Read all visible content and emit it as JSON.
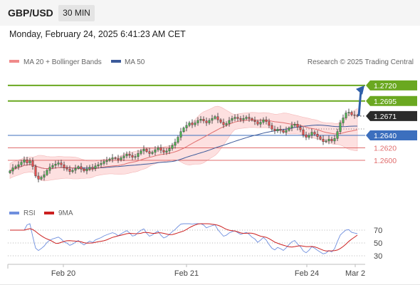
{
  "header": {
    "pair": "GBP/USD",
    "timeframe": "30 MIN"
  },
  "timestamp": "Monday, February 24, 2025 6:41:23 AM CET",
  "colors": {
    "resistance": "#6aa820",
    "support": "#e06c6c",
    "pivot": "#3c6fbe",
    "price_tag": "#2a2a2a",
    "bollinger_fill": "#fde0e0",
    "ma20": "#e07070",
    "ma50": "#3c5a9a",
    "rsi": "#6f8fde",
    "rsi_ma": "#cc2020",
    "candle_up": "#4caf50",
    "candle_down": "#e05050"
  },
  "chart_data": [
    {
      "type": "candlestick",
      "legend": {
        "ma20": "MA 20 + Bollinger Bands",
        "ma50": "MA 50"
      },
      "credit": "Research © 2025 Trading Central",
      "ylim": [
        1.2535,
        1.2745
      ],
      "x_ticks": [
        "Feb 20",
        "Feb 21",
        "Feb 24",
        "Mar 2"
      ],
      "levels": [
        {
          "value": 1.272,
          "label": "1.2720",
          "kind": "resistance"
        },
        {
          "value": 1.2695,
          "label": "1.2695",
          "kind": "resistance"
        },
        {
          "value": 1.2671,
          "label": "1.2671",
          "kind": "last"
        },
        {
          "value": 1.264,
          "label": "1.2640",
          "kind": "pivot"
        },
        {
          "value": 1.262,
          "label": "1.2620",
          "kind": "support"
        },
        {
          "value": 1.26,
          "label": "1.2600",
          "kind": "support"
        }
      ],
      "close": [
        1.2583,
        1.2588,
        1.259,
        1.2593,
        1.2597,
        1.2601,
        1.2596,
        1.2599,
        1.259,
        1.2575,
        1.257,
        1.2573,
        1.2577,
        1.2584,
        1.2589,
        1.2592,
        1.2594,
        1.2596,
        1.2593,
        1.2588,
        1.2586,
        1.2582,
        1.2584,
        1.2587,
        1.259,
        1.2586,
        1.2583,
        1.2586,
        1.2589,
        1.2587,
        1.2591,
        1.2593,
        1.2595,
        1.2598,
        1.26,
        1.2602,
        1.2604,
        1.2603,
        1.2601,
        1.2604,
        1.2607,
        1.261,
        1.2608,
        1.2605,
        1.2606,
        1.2611,
        1.2615,
        1.2618,
        1.2614,
        1.2611,
        1.2613,
        1.2617,
        1.262,
        1.2616,
        1.2613,
        1.2615,
        1.2619,
        1.2624,
        1.2629,
        1.2637,
        1.2646,
        1.2652,
        1.2656,
        1.266,
        1.2657,
        1.266,
        1.2664,
        1.2666,
        1.2663,
        1.266,
        1.2664,
        1.2667,
        1.267,
        1.2665,
        1.2661,
        1.2657,
        1.2659,
        1.2664,
        1.2667,
        1.2669,
        1.2667,
        1.2665,
        1.2667,
        1.2669,
        1.2667,
        1.2664,
        1.2662,
        1.2658,
        1.2661,
        1.2665,
        1.2662,
        1.2656,
        1.265,
        1.2647,
        1.265,
        1.2648,
        1.2645,
        1.2648,
        1.2652,
        1.2656,
        1.2658,
        1.2653,
        1.2649,
        1.2641,
        1.2637,
        1.264,
        1.2645,
        1.2642,
        1.2638,
        1.2634,
        1.263,
        1.2631,
        1.2634,
        1.2631,
        1.2635,
        1.2646,
        1.266,
        1.2668,
        1.2676,
        1.2677,
        1.2673,
        1.2672,
        1.2671
      ],
      "rsi_ylim": [
        20,
        80
      ],
      "rsi_ticks": [
        70,
        50,
        30
      ],
      "rsi_legend": {
        "rsi": "RSI",
        "ma": "9MA"
      }
    }
  ]
}
